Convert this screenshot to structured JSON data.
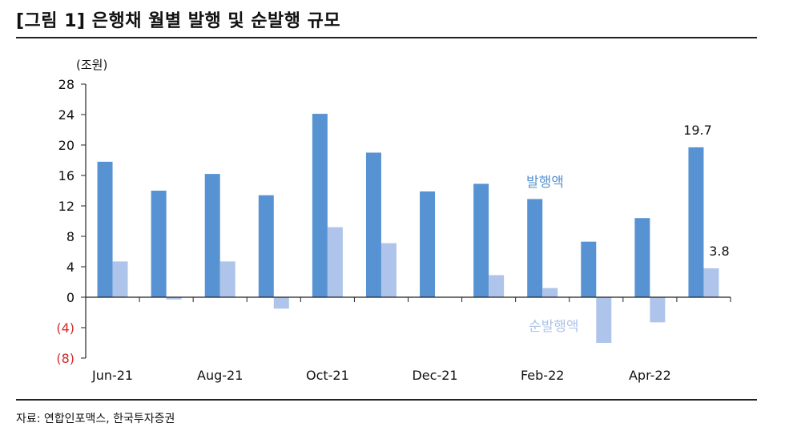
{
  "title": "[그림 1] 은행채 월별 발행 및 순발행 규모",
  "source": "자료: 연합인포맥스, 한국투자증권",
  "colors": {
    "issuance": "#5793d2",
    "net_issuance": "#aec4ea",
    "negative_tick": "#d52b2b"
  },
  "chart_data": {
    "type": "bar",
    "unit_label": "(조원)",
    "ylim": [
      -8,
      28
    ],
    "yticks": [
      {
        "value": 28,
        "label": "28"
      },
      {
        "value": 24,
        "label": "24"
      },
      {
        "value": 20,
        "label": "20"
      },
      {
        "value": 16,
        "label": "16"
      },
      {
        "value": 12,
        "label": "12"
      },
      {
        "value": 8,
        "label": "8"
      },
      {
        "value": 4,
        "label": "4"
      },
      {
        "value": 0,
        "label": "0"
      },
      {
        "value": -4,
        "label": "(4)"
      },
      {
        "value": -8,
        "label": "(8)"
      }
    ],
    "categories": [
      "Jun-21",
      "Jul-21",
      "Aug-21",
      "Sep-21",
      "Oct-21",
      "Nov-21",
      "Dec-21",
      "Jan-22",
      "Feb-22",
      "Mar-22",
      "Apr-22",
      "May-22"
    ],
    "xtick_labels": [
      "Jun-21",
      "Aug-21",
      "Oct-21",
      "Dec-21",
      "Feb-22",
      "Apr-22"
    ],
    "series": [
      {
        "name": "발행액",
        "values": [
          17.8,
          14.0,
          16.2,
          13.4,
          24.1,
          19.0,
          13.9,
          14.9,
          12.9,
          7.3,
          10.4,
          19.7
        ]
      },
      {
        "name": "순발행액",
        "values": [
          4.7,
          -0.3,
          4.7,
          -1.5,
          9.2,
          7.1,
          0.0,
          2.9,
          1.2,
          -6.0,
          -3.3,
          3.8
        ]
      }
    ],
    "data_labels": {
      "issuance_last": "19.7",
      "net_last": "3.8"
    },
    "grid": false
  }
}
